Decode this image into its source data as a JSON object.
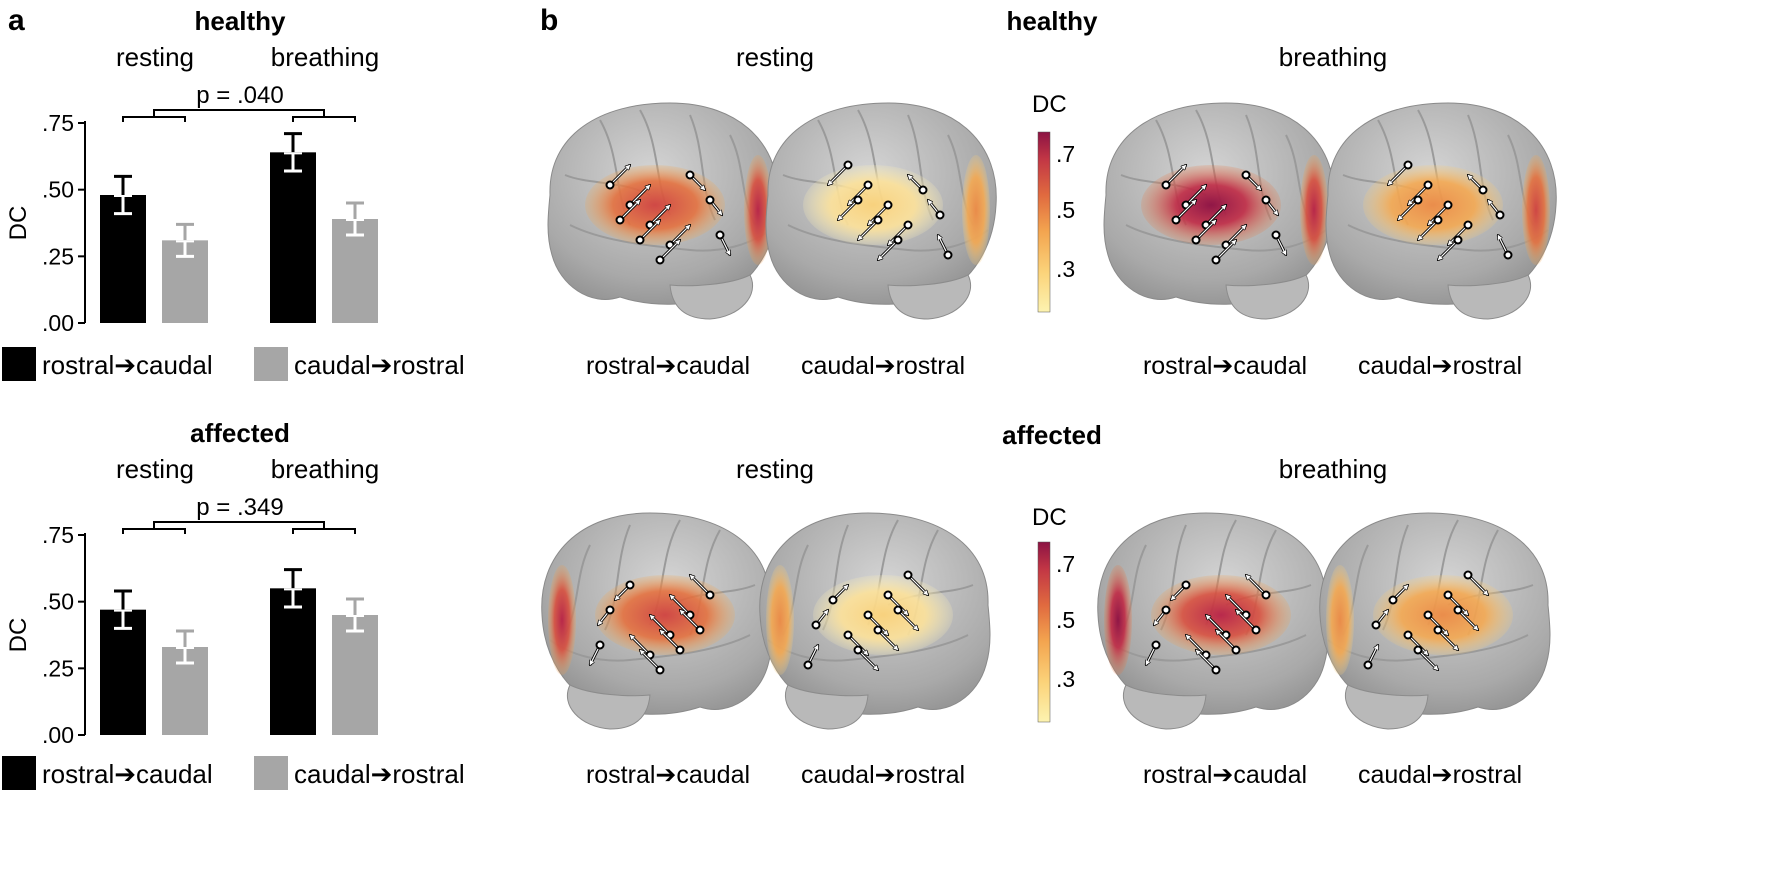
{
  "panels": {
    "a_letter": "a",
    "b_letter": "b"
  },
  "legend": {
    "series_1": "rostral➔caudal",
    "series_2": "caudal➔rostral"
  },
  "colors": {
    "series_1": "#000000",
    "series_2": "#a6a6a6",
    "colormap": [
      "#fdf3b0",
      "#fbd37a",
      "#f3a44f",
      "#e06a3f",
      "#c23645",
      "#8c1343"
    ]
  },
  "brain_labels": {
    "left_brain": "rostral➔caudal",
    "right_brain": "caudal➔rostral"
  },
  "colorbar": {
    "label": "DC",
    "ticks": [
      ".7",
      ".5",
      ".3"
    ]
  },
  "groups": [
    {
      "title": "healthy",
      "conditions": [
        "resting",
        "breathing"
      ],
      "p_label": "p = .040"
    },
    {
      "title": "affected",
      "conditions": [
        "resting",
        "breathing"
      ],
      "p_label": "p = .349"
    }
  ],
  "chart_data": [
    {
      "type": "bar",
      "title": "healthy",
      "categories": [
        "resting",
        "breathing"
      ],
      "ylabel": "DC",
      "ylim": [
        0,
        0.75
      ],
      "yticks": [
        ".00",
        ".25",
        ".50",
        ".75"
      ],
      "series": [
        {
          "name": "rostral➔caudal",
          "values": [
            0.48,
            0.64
          ],
          "error": [
            0.07,
            0.07
          ]
        },
        {
          "name": "caudal➔rostral",
          "values": [
            0.31,
            0.39
          ],
          "error": [
            0.06,
            0.06
          ]
        }
      ],
      "annotation": "p = .040"
    },
    {
      "type": "bar",
      "title": "affected",
      "categories": [
        "resting",
        "breathing"
      ],
      "ylabel": "DC",
      "ylim": [
        0,
        0.75
      ],
      "yticks": [
        ".00",
        ".25",
        ".50",
        ".75"
      ],
      "series": [
        {
          "name": "rostral➔caudal",
          "values": [
            0.47,
            0.55
          ],
          "error": [
            0.07,
            0.07
          ]
        },
        {
          "name": "caudal➔rostral",
          "values": [
            0.33,
            0.45
          ],
          "error": [
            0.06,
            0.06
          ]
        }
      ],
      "annotation": "p = .349"
    }
  ]
}
